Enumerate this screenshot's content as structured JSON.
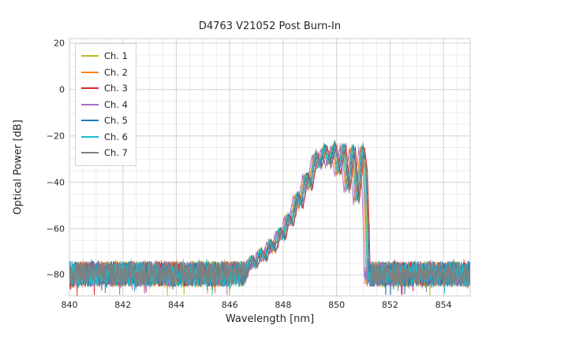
{
  "chart_data": {
    "type": "line",
    "title": "D4763 V21052 Post Burn-In",
    "xlabel": "Wavelength [nm]",
    "ylabel": "Optical Power [dB]",
    "xlim": [
      840,
      855
    ],
    "ylim": [
      -89,
      22
    ],
    "x_ticks": [
      840,
      842,
      844,
      846,
      848,
      850,
      852,
      854
    ],
    "x_tick_labels": [
      "840",
      "842",
      "844",
      "846",
      "848",
      "850",
      "852",
      "854"
    ],
    "y_ticks": [
      20,
      0,
      -20,
      -40,
      -60,
      -80
    ],
    "y_tick_labels": [
      "20",
      "0",
      "−20",
      "−40",
      "−60",
      "−80"
    ],
    "grid": {
      "major": true,
      "minor": true,
      "minor_x_step": 0.5,
      "minor_y_step": 5
    },
    "legend_position": "upper left",
    "noise_floor_db": -80,
    "noise_band_db": [
      -86,
      -74
    ],
    "envelope": [
      [
        846.3,
        -92
      ],
      [
        846.6,
        -79
      ],
      [
        846.8,
        -72
      ],
      [
        846.95,
        -76
      ],
      [
        847.15,
        -69
      ],
      [
        847.3,
        -73
      ],
      [
        847.5,
        -65
      ],
      [
        847.65,
        -69
      ],
      [
        847.85,
        -60
      ],
      [
        848.0,
        -64
      ],
      [
        848.15,
        -54
      ],
      [
        848.3,
        -58
      ],
      [
        848.5,
        -45
      ],
      [
        848.65,
        -50
      ],
      [
        848.85,
        -36
      ],
      [
        849.0,
        -42
      ],
      [
        849.2,
        -27
      ],
      [
        849.35,
        -33
      ],
      [
        849.55,
        -24
      ],
      [
        849.7,
        -32
      ],
      [
        849.9,
        -23.3
      ],
      [
        850.05,
        -36
      ],
      [
        850.25,
        -23.5
      ],
      [
        850.4,
        -43
      ],
      [
        850.6,
        -24
      ],
      [
        850.75,
        -48
      ],
      [
        850.95,
        -24.5
      ],
      [
        851.05,
        -34
      ],
      [
        851.12,
        -58
      ],
      [
        851.18,
        -92
      ]
    ],
    "series": [
      {
        "name": "Ch. 1",
        "color": "#bcbd22",
        "x_offset": 0.0,
        "y_offset": 0.0
      },
      {
        "name": "Ch. 2",
        "color": "#ff7f0e",
        "x_offset": -0.06,
        "y_offset": -0.8
      },
      {
        "name": "Ch. 3",
        "color": "#d62728",
        "x_offset": 0.1,
        "y_offset": -0.5
      },
      {
        "name": "Ch. 4",
        "color": "#ab6dc8",
        "x_offset": -0.12,
        "y_offset": -1.2
      },
      {
        "name": "Ch. 5",
        "color": "#1f77b4",
        "x_offset": 0.04,
        "y_offset": 0.3
      },
      {
        "name": "Ch. 6",
        "color": "#17becf",
        "x_offset": -0.02,
        "y_offset": -0.3
      },
      {
        "name": "Ch. 7",
        "color": "#7f7f7f",
        "x_offset": 0.07,
        "y_offset": -1.0
      }
    ]
  }
}
